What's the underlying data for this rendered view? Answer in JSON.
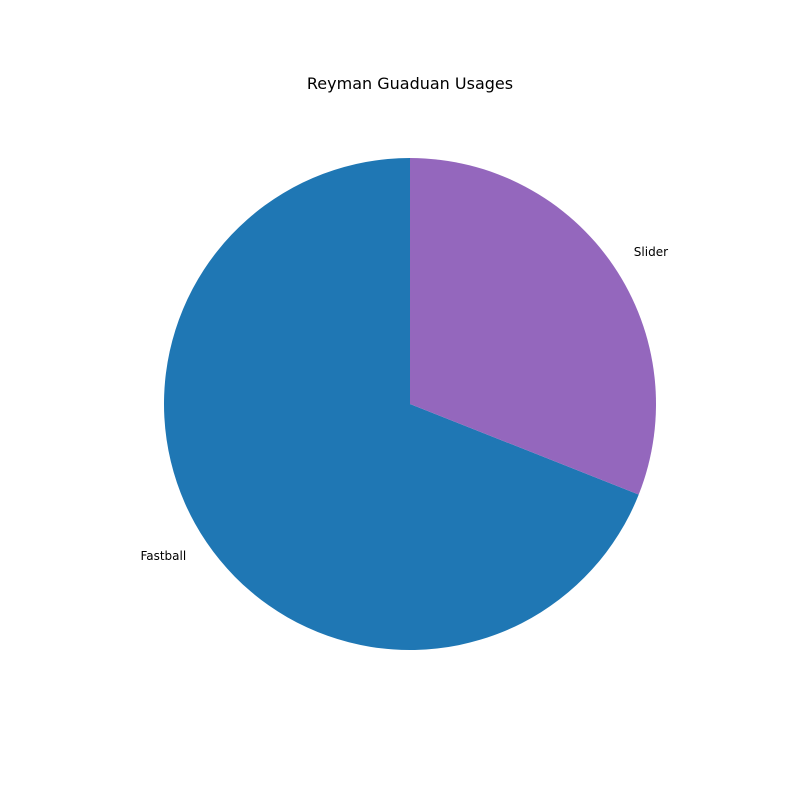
{
  "chart_data": {
    "type": "pie",
    "title": "Reyman Guaduan Usages",
    "categories": [
      "Fastball",
      "Slider"
    ],
    "values": [
      69,
      31
    ],
    "colors": [
      "#1f77b4",
      "#9467bd"
    ],
    "start_angle_deg": 90,
    "direction": "counterclockwise",
    "legend": "none"
  }
}
